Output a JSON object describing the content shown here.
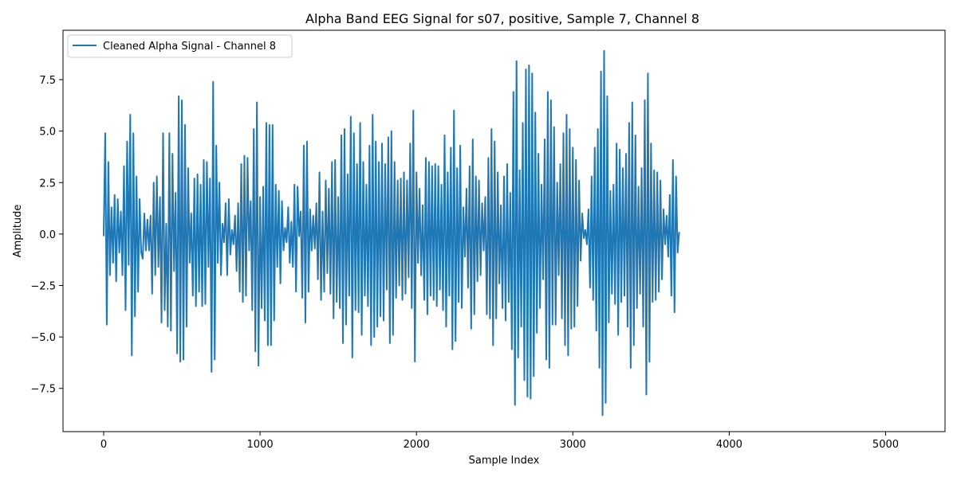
{
  "chart_data": {
    "type": "line",
    "title": "Alpha Band EEG Signal for s07, positive, Sample 7, Channel 8",
    "xlabel": "Sample Index",
    "ylabel": "Amplitude",
    "xlim": [
      -260,
      5380
    ],
    "ylim": [
      -9.6,
      9.9
    ],
    "xticks": [
      0,
      1000,
      2000,
      3000,
      4000,
      5000
    ],
    "xtick_labels": [
      "0",
      "1000",
      "2000",
      "3000",
      "4000",
      "5000"
    ],
    "yticks": [
      -7.5,
      -5.0,
      -2.5,
      0.0,
      2.5,
      5.0,
      7.5
    ],
    "ytick_labels": [
      "−7.5",
      "−5.0",
      "−2.5",
      "0.0",
      "2.5",
      "5.0",
      "7.5"
    ],
    "grid": false,
    "legend": {
      "position": "top-left",
      "entries": [
        "Cleaned Alpha Signal - Channel 8"
      ]
    },
    "series": [
      {
        "name": "Cleaned Alpha Signal - Channel 8",
        "color": "#1f77b4",
        "x_start": 0,
        "x_step": 10,
        "note_sampling": "envelope peaks recorded every 10 samples",
        "values": [
          -0.1,
          4.9,
          -4.4,
          3.5,
          -2.0,
          1.3,
          -1.4,
          1.9,
          -2.3,
          1.7,
          -0.9,
          1.1,
          -2.0,
          3.3,
          -3.7,
          4.5,
          -1.5,
          5.8,
          -5.9,
          4.9,
          -4.0,
          2.8,
          -2.8,
          1.7,
          -0.9,
          -1.2,
          1.0,
          -0.8,
          0.7,
          -0.8,
          0.9,
          -2.9,
          2.5,
          -2.0,
          2.8,
          -1.6,
          1.8,
          -4.3,
          4.9,
          -3.7,
          0.5,
          -4.5,
          4.9,
          -4.7,
          3.9,
          -1.8,
          2.0,
          -5.8,
          6.7,
          -6.2,
          6.5,
          -6.1,
          5.3,
          -4.5,
          3.2,
          -1.4,
          1.0,
          -3.0,
          2.7,
          -3.5,
          2.9,
          -2.8,
          2.4,
          -3.5,
          3.6,
          -3.4,
          3.5,
          -1.6,
          2.7,
          -6.7,
          7.4,
          -6.1,
          4.3,
          -1.4,
          2.5,
          -2.0,
          0.5,
          -0.4,
          1.5,
          -2.0,
          1.7,
          -1.0,
          0.2,
          -0.5,
          0.9,
          -1.8,
          1.5,
          -2.8,
          3.4,
          -3.3,
          3.8,
          -3.0,
          3.7,
          -0.8,
          1.6,
          -3.7,
          5.1,
          -5.7,
          6.4,
          -6.4,
          1.8,
          -3.6,
          2.3,
          -4.2,
          5.4,
          -5.4,
          5.3,
          -5.4,
          5.3,
          -4.2,
          2.4,
          -1.6,
          2.1,
          -2.4,
          1.6,
          -0.8,
          0.3,
          -0.4,
          1.3,
          -1.4,
          0.6,
          -1.6,
          2.4,
          -2.8,
          2.3,
          -0.1,
          1.1,
          -3.1,
          4.3,
          -4.3,
          4.5,
          -2.8,
          1.2,
          -0.8,
          0.9,
          -0.7,
          1.5,
          -2.2,
          3.0,
          -3.2,
          1.1,
          -2.8,
          2.6,
          -1.9,
          2.2,
          -2.9,
          3.5,
          -4.1,
          3.6,
          -3.3,
          1.8,
          -3.6,
          4.8,
          -5.3,
          5.1,
          -4.4,
          2.9,
          -3.0,
          5.7,
          -6.0,
          4.9,
          -3.7,
          3.4,
          -3.8,
          5.4,
          -4.9,
          3.5,
          -3.0,
          2.4,
          -3.5,
          4.3,
          -5.4,
          5.8,
          -5.0,
          4.5,
          -4.5,
          3.5,
          -4.0,
          4.4,
          -4.2,
          3.4,
          -2.7,
          4.7,
          -5.3,
          5.0,
          -4.9,
          3.5,
          -3.1,
          2.6,
          -2.5,
          2.7,
          -3.2,
          3.0,
          -2.9,
          2.6,
          -2.1,
          4.4,
          -3.6,
          6.0,
          -6.2,
          3.0,
          -1.4,
          2.2,
          -2.0,
          1.4,
          -3.2,
          3.7,
          -3.9,
          3.5,
          -3.0,
          3.3,
          -3.2,
          3.4,
          -3.5,
          3.3,
          -2.7,
          2.4,
          -3.7,
          4.8,
          -4.5,
          3.0,
          -3.0,
          4.2,
          -5.6,
          6.0,
          -5.2,
          3.2,
          -3.3,
          4.3,
          -3.6,
          1.3,
          -1.1,
          2.2,
          -2.6,
          3.3,
          -4.6,
          4.6,
          -3.9,
          2.8,
          -2.3,
          2.6,
          -2.0,
          1.5,
          -0.8,
          1.8,
          -3.9,
          3.7,
          -4.1,
          5.1,
          -5.4,
          4.5,
          -4.1,
          3.0,
          -2.4,
          1.4,
          -3.6,
          2.8,
          -4.2,
          3.4,
          -3.3,
          2.0,
          -5.6,
          6.9,
          -8.3,
          8.4,
          -6.0,
          3.1,
          -4.5,
          5.4,
          -7.1,
          8.0,
          -7.9,
          8.2,
          -8.0,
          7.8,
          -6.9,
          5.9,
          -4.8,
          3.9,
          -3.6,
          2.4,
          -2.2,
          4.6,
          -6.1,
          6.9,
          -6.5,
          6.5,
          -4.4,
          5.2,
          -4.4,
          2.5,
          -2.0,
          3.4,
          -4.1,
          4.9,
          -5.4,
          5.8,
          -5.9,
          5.1,
          -4.6,
          4.2,
          -4.5,
          3.6,
          -3.5,
          2.6,
          -1.3,
          1.0,
          -0.2,
          0.2,
          -0.5,
          1.2,
          -2.6,
          2.8,
          -3.2,
          4.2,
          -4.7,
          5.1,
          -6.5,
          7.9,
          -8.8,
          8.9,
          -8.2,
          6.7,
          -4.3,
          2.1,
          -2.9,
          2.4,
          -3.4,
          4.4,
          -4.9,
          4.1,
          -3.3,
          3.2,
          -3.0,
          3.9,
          -4.5,
          5.4,
          -6.5,
          6.4,
          -5.4,
          4.8,
          -3.6,
          2.3,
          -2.9,
          3.2,
          -4.5,
          6.5,
          -7.8,
          7.8,
          -6.2,
          4.4,
          -3.3,
          3.1,
          -3.2,
          3.0,
          -2.8,
          2.6,
          -2.2,
          1.2,
          -0.5,
          0.9,
          -1.1,
          1.9,
          -3.0,
          3.6,
          -3.8,
          2.8,
          -0.9,
          0.1
        ]
      }
    ]
  }
}
